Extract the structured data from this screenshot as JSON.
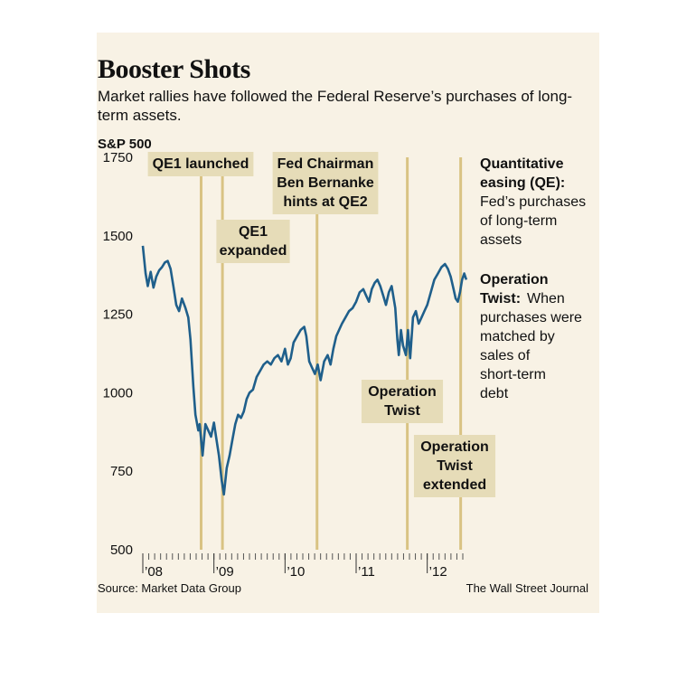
{
  "title": "Booster Shots",
  "subtitle": "Market rallies have followed the Federal Reserve’s purchases of long-term assets.",
  "source": "Source: Market Data Group",
  "credit": "The Wall Street Journal",
  "colors": {
    "background": "#f8f2e5",
    "line": "#1f5f8b",
    "event_line": "#d9c383",
    "label_bg": "#e6dcb8"
  },
  "chart_data": {
    "type": "line",
    "ylabel": "S&P 500",
    "ylim": [
      500,
      1750
    ],
    "yticks": [
      500,
      750,
      1000,
      1250,
      1500,
      1750
    ],
    "xlim": [
      2008.0,
      2012.5
    ],
    "xtick_labels": [
      {
        "x": 2008.0,
        "label": "’08"
      },
      {
        "x": 2009.0,
        "label": "’09"
      },
      {
        "x": 2010.0,
        "label": "’10"
      },
      {
        "x": 2011.0,
        "label": "’11"
      },
      {
        "x": 2012.0,
        "label": "’12"
      }
    ],
    "series": [
      {
        "values": [
          [
            2008.0,
            1468
          ],
          [
            2008.04,
            1380
          ],
          [
            2008.07,
            1340
          ],
          [
            2008.11,
            1385
          ],
          [
            2008.15,
            1335
          ],
          [
            2008.19,
            1370
          ],
          [
            2008.23,
            1390
          ],
          [
            2008.27,
            1400
          ],
          [
            2008.31,
            1415
          ],
          [
            2008.35,
            1420
          ],
          [
            2008.39,
            1395
          ],
          [
            2008.43,
            1340
          ],
          [
            2008.47,
            1280
          ],
          [
            2008.51,
            1260
          ],
          [
            2008.55,
            1300
          ],
          [
            2008.6,
            1270
          ],
          [
            2008.64,
            1240
          ],
          [
            2008.67,
            1170
          ],
          [
            2008.71,
            1020
          ],
          [
            2008.74,
            930
          ],
          [
            2008.78,
            880
          ],
          [
            2008.8,
            900
          ],
          [
            2008.84,
            800
          ],
          [
            2008.88,
            900
          ],
          [
            2008.92,
            880
          ],
          [
            2008.96,
            860
          ],
          [
            2009.0,
            905
          ],
          [
            2009.03,
            860
          ],
          [
            2009.07,
            800
          ],
          [
            2009.11,
            720
          ],
          [
            2009.14,
            676
          ],
          [
            2009.18,
            760
          ],
          [
            2009.22,
            800
          ],
          [
            2009.26,
            850
          ],
          [
            2009.3,
            900
          ],
          [
            2009.34,
            930
          ],
          [
            2009.38,
            920
          ],
          [
            2009.42,
            940
          ],
          [
            2009.46,
            980
          ],
          [
            2009.5,
            1000
          ],
          [
            2009.55,
            1010
          ],
          [
            2009.6,
            1050
          ],
          [
            2009.65,
            1070
          ],
          [
            2009.7,
            1090
          ],
          [
            2009.75,
            1100
          ],
          [
            2009.8,
            1090
          ],
          [
            2009.85,
            1110
          ],
          [
            2009.9,
            1120
          ],
          [
            2009.95,
            1100
          ],
          [
            2010.0,
            1140
          ],
          [
            2010.04,
            1090
          ],
          [
            2010.08,
            1110
          ],
          [
            2010.12,
            1160
          ],
          [
            2010.17,
            1180
          ],
          [
            2010.22,
            1200
          ],
          [
            2010.27,
            1210
          ],
          [
            2010.3,
            1180
          ],
          [
            2010.34,
            1100
          ],
          [
            2010.38,
            1080
          ],
          [
            2010.42,
            1060
          ],
          [
            2010.46,
            1090
          ],
          [
            2010.5,
            1040
          ],
          [
            2010.55,
            1100
          ],
          [
            2010.6,
            1120
          ],
          [
            2010.64,
            1090
          ],
          [
            2010.68,
            1140
          ],
          [
            2010.72,
            1180
          ],
          [
            2010.76,
            1200
          ],
          [
            2010.8,
            1220
          ],
          [
            2010.85,
            1240
          ],
          [
            2010.9,
            1260
          ],
          [
            2010.95,
            1270
          ],
          [
            2011.0,
            1290
          ],
          [
            2011.05,
            1320
          ],
          [
            2011.1,
            1330
          ],
          [
            2011.14,
            1310
          ],
          [
            2011.18,
            1290
          ],
          [
            2011.22,
            1330
          ],
          [
            2011.26,
            1350
          ],
          [
            2011.3,
            1360
          ],
          [
            2011.34,
            1340
          ],
          [
            2011.38,
            1310
          ],
          [
            2011.42,
            1280
          ],
          [
            2011.46,
            1320
          ],
          [
            2011.5,
            1340
          ],
          [
            2011.55,
            1270
          ],
          [
            2011.58,
            1170
          ],
          [
            2011.6,
            1120
          ],
          [
            2011.63,
            1200
          ],
          [
            2011.66,
            1150
          ],
          [
            2011.7,
            1120
          ],
          [
            2011.73,
            1200
          ],
          [
            2011.76,
            1110
          ],
          [
            2011.8,
            1240
          ],
          [
            2011.84,
            1260
          ],
          [
            2011.88,
            1220
          ],
          [
            2011.92,
            1240
          ],
          [
            2011.96,
            1260
          ],
          [
            2012.0,
            1280
          ],
          [
            2012.05,
            1320
          ],
          [
            2012.1,
            1360
          ],
          [
            2012.15,
            1380
          ],
          [
            2012.2,
            1400
          ],
          [
            2012.25,
            1410
          ],
          [
            2012.29,
            1395
          ],
          [
            2012.33,
            1370
          ],
          [
            2012.37,
            1330
          ],
          [
            2012.4,
            1300
          ],
          [
            2012.43,
            1290
          ],
          [
            2012.46,
            1320
          ],
          [
            2012.49,
            1360
          ],
          [
            2012.52,
            1380
          ],
          [
            2012.55,
            1360
          ]
        ]
      }
    ],
    "events": [
      {
        "x": 2008.82,
        "label": "QE1 launched",
        "lines": [
          "QE1 launched"
        ]
      },
      {
        "x": 2009.12,
        "label": "QE1 expanded",
        "lines": [
          "QE1",
          "expanded"
        ]
      },
      {
        "x": 2010.45,
        "label": "Fed Chairman Ben Bernanke hints at QE2",
        "lines": [
          "Fed Chairman",
          "Ben Bernanke",
          "hints at QE2"
        ]
      },
      {
        "x": 2011.72,
        "label": "Operation Twist",
        "lines": [
          "Operation",
          "Twist"
        ]
      },
      {
        "x": 2012.47,
        "label": "Operation Twist extended",
        "lines": [
          "Operation",
          "Twist",
          "extended"
        ]
      }
    ],
    "legend": [
      {
        "bold": "Quantitative easing (QE):",
        "text": "Fed’s purchases of long-term assets",
        "bold_lines": [
          "Quantitative",
          "easing (QE):"
        ],
        "text_lines": [
          "Fed’s purchases",
          "of long-term",
          "assets"
        ]
      },
      {
        "bold": "Operation Twist:",
        "text": "When purchases were matched by sales of short-term debt",
        "bold_lines": [
          "Operation",
          "Twist:"
        ],
        "text_lines": [
          "When",
          "purchases were",
          "matched by",
          "sales of",
          "short-term",
          "debt"
        ]
      }
    ]
  }
}
